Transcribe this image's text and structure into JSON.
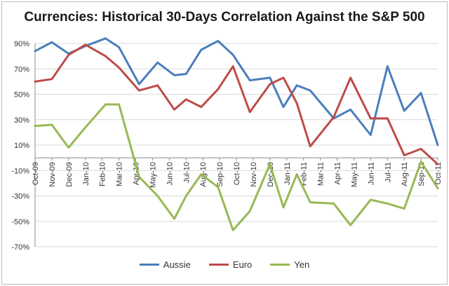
{
  "chart_data": {
    "type": "line",
    "title": "Currencies: Historical 30-Days Correlation Against the S&P 500",
    "xlabel": "",
    "ylabel": "",
    "ylim": [
      -70,
      90
    ],
    "yticks": [
      90,
      70,
      50,
      30,
      10,
      -10,
      -30,
      -50,
      -70
    ],
    "ytick_labels": [
      "90%",
      "70%",
      "50%",
      "30%",
      "10%",
      "-10%",
      "-30%",
      "-50%",
      "-70%"
    ],
    "categories": [
      "Oct-09",
      "Nov-09",
      "Dec-09",
      "Jan-10",
      "Feb-10",
      "Mar-10",
      "Apr-10",
      "May-10",
      "Jun-10",
      "Jul-10",
      "Aug-10",
      "Sep-10",
      "Oct-10",
      "Nov-10",
      "Dec-10",
      "Jan-11",
      "Feb-11",
      "Mar-11",
      "Apr-11",
      "May-11",
      "Jun-11",
      "Jul-11",
      "Aug-11",
      "Sep-11",
      "Oct-11"
    ],
    "x_tick_indices": [
      0,
      1,
      2,
      3,
      4,
      5,
      7,
      8,
      9,
      10,
      11,
      12,
      13,
      14,
      15,
      16,
      17,
      18,
      19,
      20,
      21,
      23,
      24,
      25,
      27
    ],
    "x": [
      0,
      1,
      2,
      3,
      4,
      5,
      6,
      7,
      8,
      9,
      10,
      11,
      12,
      13,
      14,
      15,
      16,
      17,
      18,
      19,
      20,
      21,
      22,
      23,
      24,
      25,
      26,
      27,
      28,
      29,
      30,
      31,
      32,
      33,
      34,
      35,
      36,
      37,
      38,
      39,
      40,
      41,
      42,
      43
    ],
    "series": [
      {
        "name": "Aussie",
        "color": "#4a7ebb",
        "points": [
          [
            0,
            84
          ],
          [
            1.0,
            91
          ],
          [
            2.0,
            82
          ],
          [
            3.0,
            88
          ],
          [
            4.2,
            94
          ],
          [
            5.0,
            87
          ],
          [
            6.2,
            58
          ],
          [
            7.3,
            75
          ],
          [
            8.3,
            65
          ],
          [
            9.0,
            66
          ],
          [
            9.9,
            85
          ],
          [
            10.9,
            92
          ],
          [
            11.8,
            81
          ],
          [
            12.8,
            61
          ],
          [
            14.0,
            63
          ],
          [
            14.8,
            40
          ],
          [
            15.6,
            57
          ],
          [
            16.4,
            53
          ],
          [
            17.8,
            31
          ],
          [
            18.8,
            38
          ],
          [
            20.0,
            18
          ],
          [
            21.0,
            72
          ],
          [
            22.0,
            37
          ],
          [
            23.0,
            51
          ],
          [
            24.0,
            10
          ]
        ]
      },
      {
        "name": "Euro",
        "color": "#be4b48",
        "points": [
          [
            0,
            60
          ],
          [
            1.0,
            62
          ],
          [
            2.0,
            81
          ],
          [
            3.0,
            89
          ],
          [
            4.2,
            80
          ],
          [
            5.0,
            71
          ],
          [
            6.2,
            53
          ],
          [
            7.3,
            57
          ],
          [
            8.3,
            38
          ],
          [
            9.0,
            46
          ],
          [
            9.9,
            40
          ],
          [
            10.9,
            54
          ],
          [
            11.8,
            72
          ],
          [
            12.8,
            36
          ],
          [
            14.0,
            58
          ],
          [
            14.8,
            63
          ],
          [
            15.6,
            43
          ],
          [
            16.4,
            9
          ],
          [
            17.8,
            32
          ],
          [
            18.8,
            63
          ],
          [
            20.0,
            31
          ],
          [
            21.0,
            31
          ],
          [
            22.0,
            2
          ],
          [
            23.0,
            7
          ],
          [
            24.0,
            -5
          ]
        ]
      },
      {
        "name": "Yen",
        "color": "#98b954",
        "points": [
          [
            0,
            25
          ],
          [
            1.0,
            26
          ],
          [
            2.0,
            8
          ],
          [
            3.0,
            24
          ],
          [
            4.2,
            42
          ],
          [
            5.0,
            42
          ],
          [
            6.2,
            -15
          ],
          [
            7.3,
            -30
          ],
          [
            8.3,
            -48
          ],
          [
            9.0,
            -30
          ],
          [
            9.9,
            -13
          ],
          [
            10.9,
            -23
          ],
          [
            11.8,
            -57
          ],
          [
            12.8,
            -42
          ],
          [
            14.0,
            -5
          ],
          [
            14.8,
            -39
          ],
          [
            15.6,
            -13
          ],
          [
            16.4,
            -35
          ],
          [
            17.8,
            -36
          ],
          [
            18.8,
            -53
          ],
          [
            20.0,
            -33
          ],
          [
            21.0,
            -36
          ],
          [
            22.0,
            -40
          ],
          [
            23.0,
            -3
          ],
          [
            24.0,
            -24
          ]
        ]
      }
    ],
    "legend": [
      "Aussie",
      "Euro",
      "Yen"
    ],
    "legend_position": "bottom",
    "grid": "horizontal"
  }
}
